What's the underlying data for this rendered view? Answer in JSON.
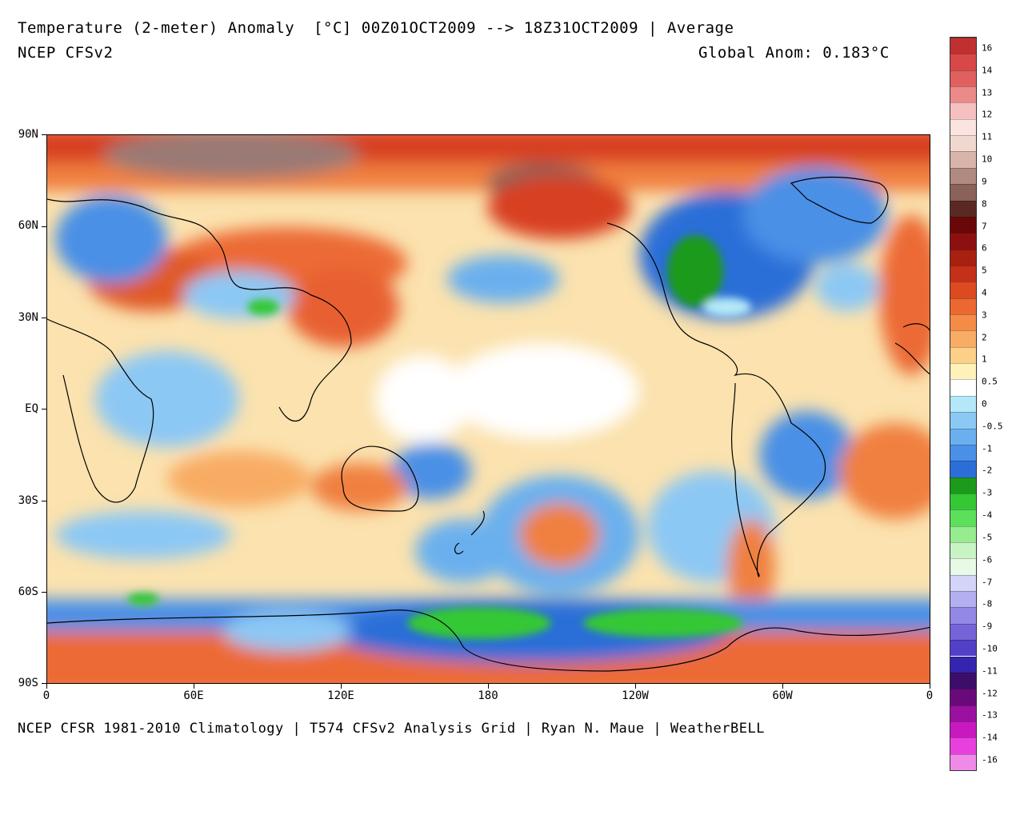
{
  "header": {
    "title": "Temperature (2-meter) Anomaly  [°C] 00Z01OCT2009 --> 18Z31OCT2009 | Average",
    "subtitle": "NCEP CFSv2",
    "global_anom": "Global Anom: 0.183°C"
  },
  "footer": {
    "credit": "NCEP CFSR 1981-2010 Climatology | T574 CFSv2 Analysis Grid | Ryan N. Maue | WeatherBELL"
  },
  "map": {
    "y_labels": [
      "90N",
      "60N",
      "30N",
      "EQ",
      "30S",
      "60S",
      "90S"
    ],
    "x_labels": [
      "0",
      "60E",
      "120E",
      "180",
      "120W",
      "60W",
      "0"
    ]
  },
  "legend": {
    "labels": [
      "16",
      "14",
      "13",
      "12",
      "11",
      "10",
      "9",
      "8",
      "7",
      "6",
      "5",
      "4",
      "3",
      "2",
      "1",
      "0.5",
      "0",
      "-0.5",
      "-1",
      "-2",
      "-3",
      "-4",
      "-5",
      "-6",
      "-7",
      "-8",
      "-9",
      "-10",
      "-11",
      "-12",
      "-13",
      "-14",
      "-16"
    ],
    "colors": [
      "#c03030",
      "#d84848",
      "#e06060",
      "#ec8a8a",
      "#f7c0c0",
      "#fbe4e0",
      "#f0d8d0",
      "#d8b4aa",
      "#b08a80",
      "#8a6258",
      "#5a2a22",
      "#6a0808",
      "#8c1010",
      "#a82010",
      "#c43018",
      "#dc4a20",
      "#ec6830",
      "#f48c48",
      "#f8ac64",
      "#fcd088",
      "#fff2b8",
      "#ffffff",
      "#b4e8f8",
      "#8cc8f4",
      "#6ab0ee",
      "#4a90e6",
      "#2c6ed8",
      "#1c9a1c",
      "#34c834",
      "#5ce05c",
      "#96ec8e",
      "#c8f4c4",
      "#e8fae6",
      "#d4d4f8",
      "#b4b0f0",
      "#9488e6",
      "#7464d8",
      "#5240c8",
      "#3424b0",
      "#3c0e6a",
      "#6a0a7a",
      "#9a10a0",
      "#c818c0",
      "#e840de",
      "#f08ae8"
    ]
  }
}
